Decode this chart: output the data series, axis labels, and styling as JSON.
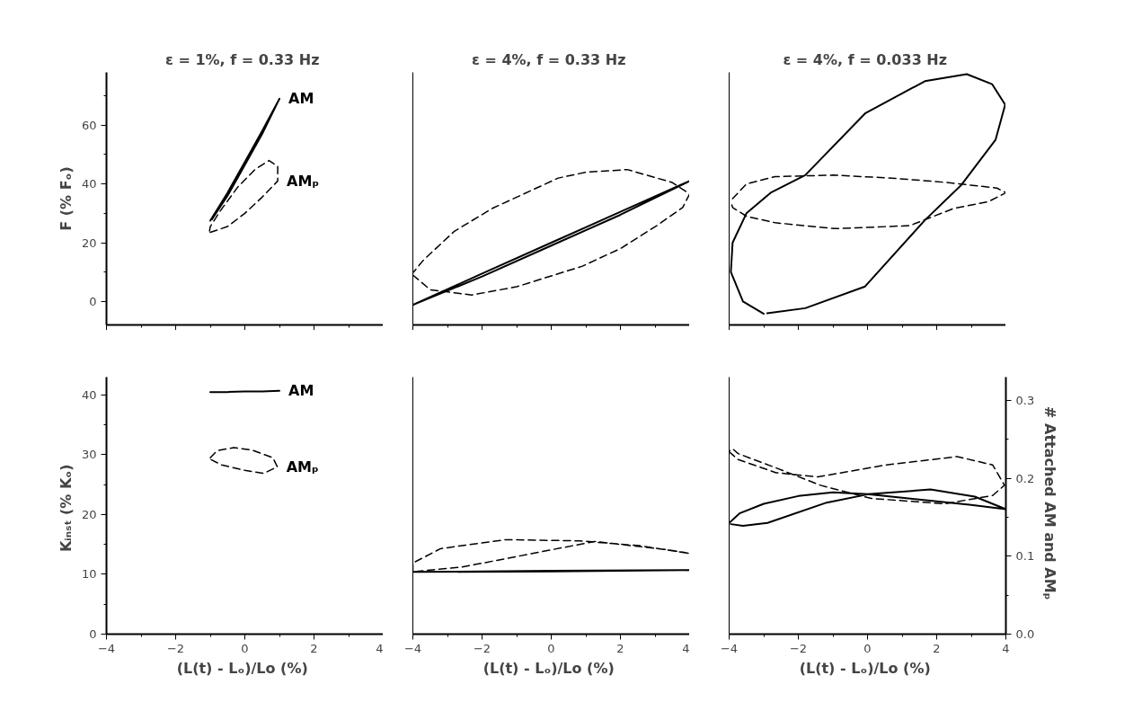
{
  "chart_data": [
    {
      "type": "line",
      "title": "ε = 1%,  f = 0.33 Hz",
      "ylabel": "F (% Fₒ)",
      "xlim": [
        -4,
        4
      ],
      "xticks": [
        -4,
        -2,
        0,
        2,
        4
      ],
      "ylim": [
        -8,
        78
      ],
      "yticks": [
        0,
        20,
        40,
        60
      ],
      "tick_labels": "y",
      "grid": false,
      "marker": "none",
      "series": [
        {
          "name": "AM",
          "color": "#000000",
          "line_style": "solid",
          "x": [
            -1.0,
            -0.5,
            0,
            0.5,
            1.0,
            0.5,
            0,
            -0.5,
            -0.95
          ],
          "values": [
            27.5,
            37,
            47.5,
            58,
            69,
            57,
            46.5,
            36,
            28
          ]
        },
        {
          "name": "AMₚ",
          "color": "#000000",
          "line_style": "dashed",
          "x": [
            -1,
            -0.5,
            0,
            0.5,
            0.95,
            0.95,
            0.7,
            0.3,
            -0.2,
            -0.7,
            -1,
            -1.02
          ],
          "values": [
            23.5,
            25.5,
            30,
            35.5,
            41,
            46,
            48,
            45,
            39,
            31,
            25.5,
            24
          ]
        }
      ]
    },
    {
      "type": "line",
      "title": "ε = 4%,  f = 0.33 Hz",
      "xlim": [
        -4,
        4
      ],
      "xticks": [
        -4,
        -2,
        0,
        2,
        4
      ],
      "ylim": [
        -8,
        78
      ],
      "yticks": [
        0,
        20,
        40,
        60
      ],
      "tick_labels": false,
      "grid": false,
      "marker": "none",
      "series": [
        {
          "color": "#000000",
          "line_style": "solid",
          "x": [
            -4,
            -2,
            0,
            2,
            4,
            2,
            0,
            -2,
            -3.9
          ],
          "values": [
            -1.2,
            9.5,
            20,
            30.5,
            41,
            29.5,
            19,
            8.5,
            -0.7
          ]
        },
        {
          "color": "#000000",
          "line_style": "dashed",
          "x": [
            -4,
            -3.5,
            -2.3,
            -1,
            0.9,
            2,
            3.05,
            3.8,
            4,
            3.5,
            2.2,
            1,
            0.2,
            -1.7,
            -2.8,
            -3.7,
            -3.98
          ],
          "values": [
            9,
            4,
            2.2,
            5,
            12,
            18,
            25.8,
            32,
            36.6,
            40.5,
            44.9,
            44,
            42,
            31.7,
            23.9,
            14,
            10
          ]
        }
      ]
    },
    {
      "type": "line",
      "title": "ε = 4%,  f = 0.033 Hz",
      "xlim": [
        -4,
        4
      ],
      "xticks": [
        -4,
        -2,
        0,
        2,
        4
      ],
      "ylim": [
        -8,
        78
      ],
      "yticks": [
        0,
        20,
        40,
        60
      ],
      "tick_labels": false,
      "grid": false,
      "marker": "none",
      "series": [
        {
          "color": "#000000",
          "line_style": "solid",
          "x": [
            -3.0,
            -3.6,
            -3.95,
            -3.9,
            -3.5,
            -2.8,
            -1.8,
            -0.07,
            1.66,
            2.87,
            3.6,
            3.98,
            3.7,
            2.7,
            1.66,
            -0.07,
            -1.8,
            -2.9
          ],
          "values": [
            -4.2,
            0,
            10,
            20,
            30,
            37,
            43,
            64,
            75,
            77.4,
            74,
            67,
            55,
            39.5,
            27.7,
            5.1,
            -2.3,
            -4
          ]
        },
        {
          "color": "#000000",
          "line_style": "dashed",
          "x": [
            -3.9,
            -3.5,
            -2.67,
            -1,
            0.7,
            2.3,
            3.74,
            4,
            3.5,
            2.5,
            1.22,
            -0.94,
            -2.67,
            -3.5,
            -3.9,
            -3.95
          ],
          "values": [
            35,
            40,
            42.5,
            43,
            42,
            40.5,
            38.6,
            37,
            34,
            31.7,
            25.8,
            24.8,
            26.8,
            29,
            32,
            34
          ]
        }
      ]
    },
    {
      "type": "line",
      "xlabel": "(L(t) - Lₒ)/Lo  (%)",
      "ylabel": "Kᵢₙₛₜ  (% Kₒ)",
      "xlim": [
        -4,
        4
      ],
      "xticks": [
        -4,
        -2,
        0,
        2,
        4
      ],
      "ylim": [
        0,
        43
      ],
      "yticks": [
        0,
        10,
        20,
        30,
        40
      ],
      "grid": false,
      "marker": "none",
      "series": [
        {
          "name": "AM",
          "color": "#000000",
          "line_style": "solid",
          "x": [
            -1,
            -0.5,
            0,
            0.5,
            1
          ],
          "values": [
            40.5,
            40.5,
            40.6,
            40.6,
            40.7
          ]
        },
        {
          "name": "AMₚ",
          "color": "#000000",
          "line_style": "dashed",
          "x": [
            -1,
            -0.8,
            -0.32,
            0.2,
            0.81,
            0.94,
            0.55,
            0,
            -0.67,
            -0.98
          ],
          "values": [
            29.5,
            30.7,
            31.2,
            30.8,
            29.5,
            28,
            26.9,
            27.4,
            28.3,
            29.2
          ]
        }
      ]
    },
    {
      "type": "line",
      "xlabel": "(L(t) - Lₒ)/Lo  (%)",
      "xlim": [
        -4,
        4
      ],
      "xticks": [
        -4,
        -2,
        0,
        2,
        4
      ],
      "ylim": [
        0,
        43
      ],
      "yticks": [
        0,
        10,
        20,
        30,
        40
      ],
      "tick_labels": "x",
      "grid": false,
      "marker": "none",
      "series": [
        {
          "color": "#000000",
          "line_style": "solid",
          "x": [
            -4,
            0,
            4,
            0,
            -3.9
          ],
          "values": [
            10.4,
            10.6,
            10.7,
            10.5,
            10.4
          ]
        },
        {
          "color": "#000000",
          "line_style": "dashed",
          "x": [
            -4,
            -4,
            -3.2,
            -1.32,
            0.82,
            2.54,
            4,
            3.39,
            1.25,
            -0.89,
            -2.6,
            -3.9
          ],
          "values": [
            10.4,
            11.9,
            14.3,
            15.8,
            15.6,
            14.8,
            13.5,
            14.1,
            15.5,
            13.1,
            11.2,
            10.5
          ]
        }
      ]
    },
    {
      "type": "line",
      "xlabel": "(L(t) - Lₒ)/Lo  (%)",
      "y2label": "# Attached  AM and AMₚ",
      "xlim": [
        -4,
        4
      ],
      "xticks": [
        -4,
        -2,
        0,
        2,
        4
      ],
      "ylim": [
        0,
        43
      ],
      "yticks": [
        0,
        10,
        20,
        30,
        40
      ],
      "y2lim": [
        0,
        0.33
      ],
      "y2ticks": [
        {
          "value": 0,
          "label": "0.0"
        },
        {
          "value": 0.1,
          "label": "0.1"
        },
        {
          "value": 0.2,
          "label": "0.2"
        },
        {
          "value": 0.3,
          "label": "0.3"
        }
      ],
      "tick_labels": "x",
      "grid": false,
      "marker": "none",
      "series": [
        {
          "color": "#000000",
          "line_style": "solid",
          "x": [
            -4,
            -3.7,
            -3,
            -2,
            -1,
            0,
            1,
            2,
            3,
            4,
            3.1,
            1.82,
            0.02,
            -1.18,
            -2.89,
            -3.6,
            -3.95
          ],
          "values": [
            18.6,
            20.2,
            21.8,
            23.1,
            23.7,
            23.4,
            22.8,
            22.2,
            21.6,
            20.9,
            23,
            24.2,
            23.4,
            22,
            18.6,
            18.1,
            18.4
          ]
        },
        {
          "color": "#000000",
          "line_style": "dashed",
          "x": [
            -4,
            -3.74,
            -2.64,
            -1.43,
            0.53,
            2.59,
            3.62,
            3.96,
            3.62,
            2.24,
            0.11,
            -1.36,
            -2.64,
            -3.74,
            -3.9,
            -3.98
          ],
          "values": [
            30.5,
            29.2,
            27,
            26.3,
            28.3,
            29.7,
            28.3,
            24.9,
            23.2,
            21.8,
            22.7,
            24.9,
            27.8,
            30.2,
            31,
            30.7
          ]
        }
      ]
    }
  ]
}
